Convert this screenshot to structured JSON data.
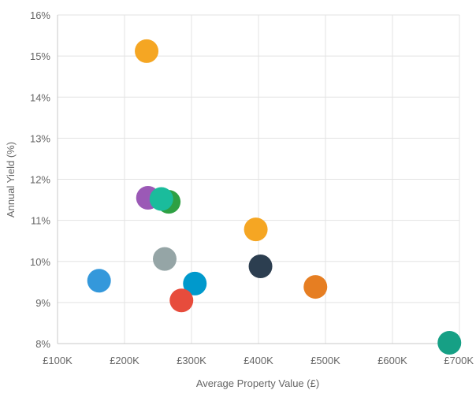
{
  "chart_data": {
    "type": "scatter",
    "xlabel": "Average Property Value (£)",
    "ylabel": "Annual Yield (%)",
    "xlim": [
      100000,
      700000
    ],
    "ylim": [
      8,
      16
    ],
    "x_ticks": [
      100000,
      200000,
      300000,
      400000,
      500000,
      600000,
      700000
    ],
    "x_tick_labels": [
      "£100K",
      "£200K",
      "£300K",
      "£400K",
      "£500K",
      "£600K",
      "£700K"
    ],
    "y_ticks": [
      8,
      9,
      10,
      11,
      12,
      13,
      14,
      15,
      16
    ],
    "y_tick_labels": [
      "8%",
      "9%",
      "10%",
      "11%",
      "12%",
      "13%",
      "14%",
      "15%",
      "16%"
    ],
    "grid": true,
    "legend": "none",
    "points": [
      {
        "x": 233000,
        "y": 15.12,
        "color": "#F5A623"
      },
      {
        "x": 235000,
        "y": 11.55,
        "color": "#9B59B6"
      },
      {
        "x": 266000,
        "y": 11.45,
        "color": "#2EA043"
      },
      {
        "x": 255000,
        "y": 11.52,
        "color": "#1ABC9C"
      },
      {
        "x": 396000,
        "y": 10.78,
        "color": "#F5A623"
      },
      {
        "x": 260000,
        "y": 10.06,
        "color": "#95A5A6"
      },
      {
        "x": 403000,
        "y": 9.88,
        "color": "#2C3E50"
      },
      {
        "x": 162000,
        "y": 9.53,
        "color": "#3498DB"
      },
      {
        "x": 305000,
        "y": 9.46,
        "color": "#0099CC"
      },
      {
        "x": 485000,
        "y": 9.38,
        "color": "#E67E22"
      },
      {
        "x": 285000,
        "y": 9.05,
        "color": "#E74C3C"
      },
      {
        "x": 685000,
        "y": 8.02,
        "color": "#16A085"
      }
    ]
  }
}
